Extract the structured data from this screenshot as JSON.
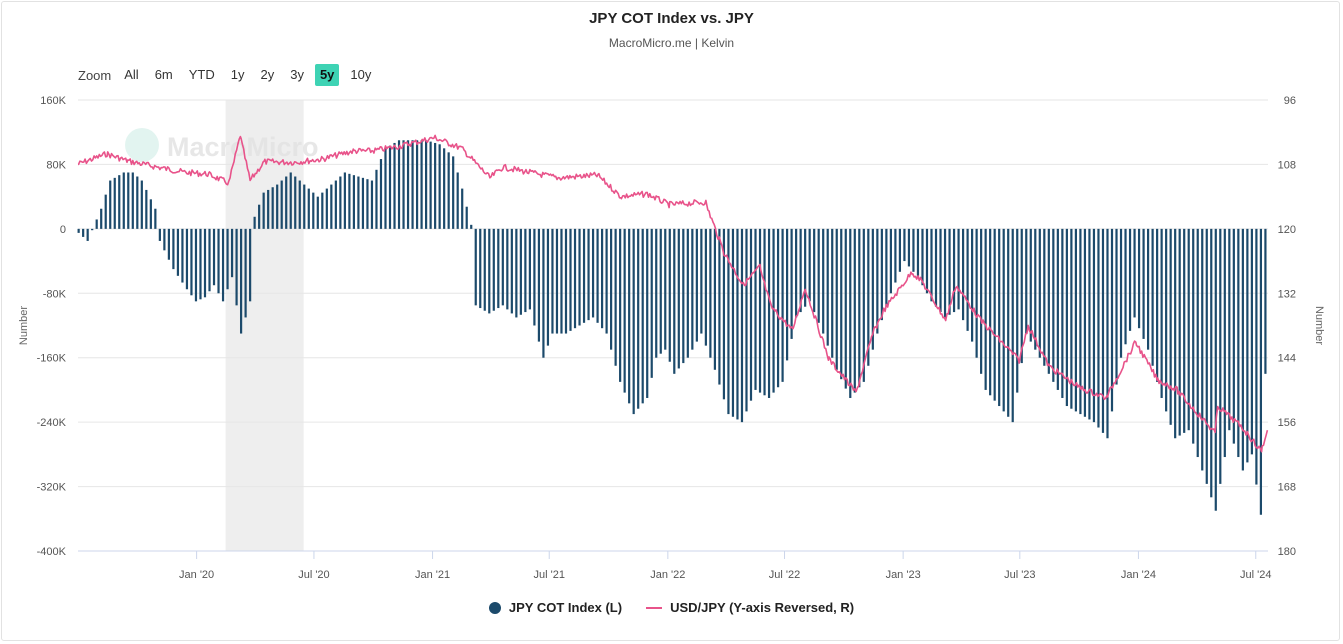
{
  "title": "JPY COT Index vs. JPY",
  "subtitle": "MacroMicro.me | Kelvin",
  "watermark": "MacroMicro",
  "zoom": {
    "label": "Zoom",
    "buttons": [
      "All",
      "6m",
      "YTD",
      "1y",
      "2y",
      "3y",
      "5y",
      "10y"
    ],
    "selected": "5y"
  },
  "colors": {
    "bars": "#1c4a6b",
    "line": "#e8538a",
    "grid": "#e6e6e6",
    "shade": "#eeeeee",
    "zoom_active": "#3ed3b4"
  },
  "legend": [
    {
      "label": "JPY COT Index (L)",
      "color": "#1c4a6b",
      "kind": "dot"
    },
    {
      "label": "USD/JPY (Y-axis Reversed, R)",
      "color": "#e8538a",
      "kind": "line"
    }
  ],
  "chart_data": {
    "type": "bar+line",
    "x_range": [
      "2019-07-01",
      "2024-07-20"
    ],
    "x_ticks": [
      {
        "date": "2020-01-01",
        "label": "Jan '20"
      },
      {
        "date": "2020-07-01",
        "label": "Jul '20"
      },
      {
        "date": "2021-01-01",
        "label": "Jan '21"
      },
      {
        "date": "2021-07-01",
        "label": "Jul '21"
      },
      {
        "date": "2022-01-01",
        "label": "Jan '22"
      },
      {
        "date": "2022-07-01",
        "label": "Jul '22"
      },
      {
        "date": "2023-01-01",
        "label": "Jan '23"
      },
      {
        "date": "2023-07-01",
        "label": "Jul '23"
      },
      {
        "date": "2024-01-01",
        "label": "Jan '24"
      },
      {
        "date": "2024-07-01",
        "label": "Jul '24"
      }
    ],
    "left_axis": {
      "label": "Number",
      "min": -400000,
      "max": 160000,
      "ticks": [
        -400000,
        -320000,
        -240000,
        -160000,
        -80000,
        0,
        80000,
        160000
      ],
      "tick_labels": [
        "-400K",
        "-320K",
        "-240K",
        "-160K",
        "-80K",
        "0",
        "80K",
        "160K"
      ]
    },
    "right_axis": {
      "label": "Number",
      "min": 96,
      "max": 180,
      "reversed": true,
      "ticks": [
        96,
        108,
        120,
        132,
        144,
        156,
        168,
        180
      ],
      "tick_labels": [
        "96",
        "108",
        "120",
        "132",
        "144",
        "156",
        "168",
        "180"
      ]
    },
    "shaded_region": [
      "2020-02-15",
      "2020-06-15"
    ],
    "series": [
      {
        "name": "JPY COT Index (L)",
        "type": "bar",
        "weekly_anchors": [
          [
            "2019-07-02",
            -5000
          ],
          [
            "2019-07-16",
            -15000
          ],
          [
            "2019-08-06",
            25000
          ],
          [
            "2019-08-20",
            60000
          ],
          [
            "2019-09-10",
            70000
          ],
          [
            "2019-09-24",
            70000
          ],
          [
            "2019-10-08",
            60000
          ],
          [
            "2019-10-29",
            25000
          ],
          [
            "2019-11-05",
            -15000
          ],
          [
            "2019-11-26",
            -50000
          ],
          [
            "2019-12-17",
            -75000
          ],
          [
            "2019-12-31",
            -90000
          ],
          [
            "2020-01-14",
            -85000
          ],
          [
            "2020-01-28",
            -70000
          ],
          [
            "2020-02-11",
            -90000
          ],
          [
            "2020-02-25",
            -60000
          ],
          [
            "2020-03-10",
            -130000
          ],
          [
            "2020-03-24",
            -90000
          ],
          [
            "2020-03-31",
            15000
          ],
          [
            "2020-04-14",
            45000
          ],
          [
            "2020-05-05",
            55000
          ],
          [
            "2020-05-26",
            70000
          ],
          [
            "2020-06-16",
            55000
          ],
          [
            "2020-07-07",
            40000
          ],
          [
            "2020-07-28",
            55000
          ],
          [
            "2020-08-18",
            70000
          ],
          [
            "2020-09-08",
            65000
          ],
          [
            "2020-09-29",
            60000
          ],
          [
            "2020-10-20",
            100000
          ],
          [
            "2020-11-10",
            110000
          ],
          [
            "2020-12-01",
            110000
          ],
          [
            "2020-12-22",
            110000
          ],
          [
            "2021-01-12",
            105000
          ],
          [
            "2021-02-02",
            90000
          ],
          [
            "2021-02-16",
            50000
          ],
          [
            "2021-03-02",
            5000
          ],
          [
            "2021-03-09",
            -95000
          ],
          [
            "2021-03-30",
            -105000
          ],
          [
            "2021-04-20",
            -95000
          ],
          [
            "2021-05-11",
            -110000
          ],
          [
            "2021-06-01",
            -100000
          ],
          [
            "2021-06-22",
            -160000
          ],
          [
            "2021-07-06",
            -130000
          ],
          [
            "2021-07-27",
            -130000
          ],
          [
            "2021-08-17",
            -120000
          ],
          [
            "2021-09-07",
            -110000
          ],
          [
            "2021-09-28",
            -130000
          ],
          [
            "2021-10-19",
            -190000
          ],
          [
            "2021-11-09",
            -230000
          ],
          [
            "2021-11-30",
            -210000
          ],
          [
            "2021-12-14",
            -160000
          ],
          [
            "2021-12-28",
            -150000
          ],
          [
            "2022-01-11",
            -180000
          ],
          [
            "2022-02-01",
            -160000
          ],
          [
            "2022-02-22",
            -130000
          ],
          [
            "2022-03-15",
            -175000
          ],
          [
            "2022-04-05",
            -230000
          ],
          [
            "2022-04-26",
            -240000
          ],
          [
            "2022-05-17",
            -200000
          ],
          [
            "2022-06-07",
            -210000
          ],
          [
            "2022-06-28",
            -190000
          ],
          [
            "2022-07-19",
            -110000
          ],
          [
            "2022-08-09",
            -90000
          ],
          [
            "2022-08-30",
            -130000
          ],
          [
            "2022-09-20",
            -175000
          ],
          [
            "2022-10-11",
            -210000
          ],
          [
            "2022-11-01",
            -190000
          ],
          [
            "2022-11-22",
            -130000
          ],
          [
            "2022-12-13",
            -80000
          ],
          [
            "2023-01-03",
            -40000
          ],
          [
            "2023-01-24",
            -60000
          ],
          [
            "2023-02-14",
            -90000
          ],
          [
            "2023-03-07",
            -110000
          ],
          [
            "2023-03-28",
            -100000
          ],
          [
            "2023-04-18",
            -140000
          ],
          [
            "2023-05-09",
            -200000
          ],
          [
            "2023-05-30",
            -220000
          ],
          [
            "2023-06-20",
            -240000
          ],
          [
            "2023-07-11",
            -130000
          ],
          [
            "2023-08-01",
            -160000
          ],
          [
            "2023-08-22",
            -190000
          ],
          [
            "2023-09-12",
            -220000
          ],
          [
            "2023-10-03",
            -230000
          ],
          [
            "2023-10-24",
            -240000
          ],
          [
            "2023-11-14",
            -260000
          ],
          [
            "2023-12-05",
            -160000
          ],
          [
            "2023-12-26",
            -110000
          ],
          [
            "2024-01-16",
            -150000
          ],
          [
            "2024-02-06",
            -210000
          ],
          [
            "2024-02-27",
            -260000
          ],
          [
            "2024-03-19",
            -250000
          ],
          [
            "2024-04-09",
            -300000
          ],
          [
            "2024-04-30",
            -350000
          ],
          [
            "2024-05-21",
            -250000
          ],
          [
            "2024-06-11",
            -300000
          ],
          [
            "2024-06-25",
            -280000
          ],
          [
            "2024-07-09",
            -355000
          ],
          [
            "2024-07-16",
            -180000
          ]
        ]
      },
      {
        "name": "USD/JPY (Y-axis Reversed, R)",
        "type": "line",
        "anchors": [
          [
            "2019-07-01",
            108.0
          ],
          [
            "2019-08-15",
            106.0
          ],
          [
            "2019-09-15",
            107.3
          ],
          [
            "2019-11-01",
            108.5
          ],
          [
            "2019-12-15",
            109.5
          ],
          [
            "2020-01-20",
            109.8
          ],
          [
            "2020-02-20",
            111.5
          ],
          [
            "2020-03-09",
            102.5
          ],
          [
            "2020-03-24",
            111.0
          ],
          [
            "2020-04-15",
            107.5
          ],
          [
            "2020-06-01",
            107.6
          ],
          [
            "2020-07-15",
            107.0
          ],
          [
            "2020-08-31",
            105.5
          ],
          [
            "2020-10-01",
            105.5
          ],
          [
            "2020-11-15",
            104.5
          ],
          [
            "2021-01-05",
            103.0
          ],
          [
            "2021-02-15",
            105.0
          ],
          [
            "2021-03-31",
            110.5
          ],
          [
            "2021-04-20",
            108.5
          ],
          [
            "2021-06-01",
            109.5
          ],
          [
            "2021-07-15",
            110.5
          ],
          [
            "2021-09-15",
            110.0
          ],
          [
            "2021-10-20",
            114.0
          ],
          [
            "2021-11-30",
            113.5
          ],
          [
            "2022-01-03",
            115.5
          ],
          [
            "2022-03-01",
            115.0
          ],
          [
            "2022-03-28",
            124.0
          ],
          [
            "2022-04-28",
            130.5
          ],
          [
            "2022-05-24",
            127.0
          ],
          [
            "2022-06-10",
            134.5
          ],
          [
            "2022-07-14",
            139.0
          ],
          [
            "2022-08-02",
            131.0
          ],
          [
            "2022-09-07",
            144.0
          ],
          [
            "2022-10-20",
            150.5
          ],
          [
            "2022-11-15",
            139.5
          ],
          [
            "2022-12-01",
            135.5
          ],
          [
            "2023-01-15",
            128.0
          ],
          [
            "2023-02-01",
            130.0
          ],
          [
            "2023-03-08",
            137.0
          ],
          [
            "2023-03-24",
            130.5
          ],
          [
            "2023-05-01",
            137.0
          ],
          [
            "2023-06-30",
            144.5
          ],
          [
            "2023-07-14",
            138.0
          ],
          [
            "2023-08-15",
            145.5
          ],
          [
            "2023-10-01",
            149.5
          ],
          [
            "2023-11-13",
            151.5
          ],
          [
            "2023-12-28",
            141.0
          ],
          [
            "2024-01-30",
            148.0
          ],
          [
            "2024-03-01",
            150.0
          ],
          [
            "2024-04-29",
            158.0
          ],
          [
            "2024-05-03",
            153.0
          ],
          [
            "2024-06-10",
            157.0
          ],
          [
            "2024-07-10",
            161.5
          ],
          [
            "2024-07-19",
            157.5
          ]
        ]
      }
    ]
  }
}
